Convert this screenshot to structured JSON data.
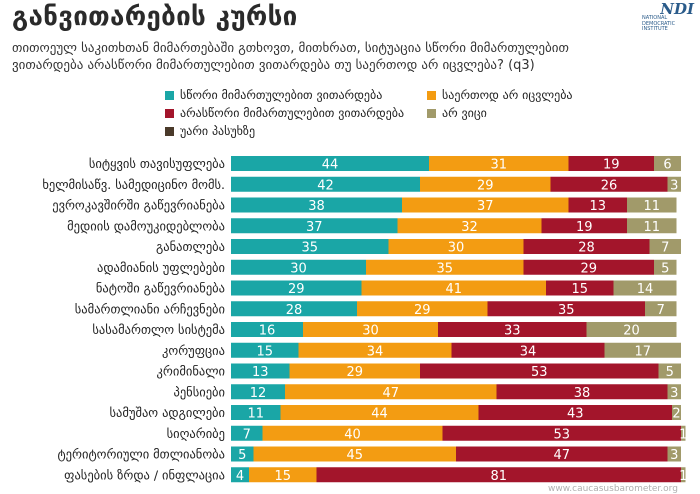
{
  "header": {
    "title": "განვითარების კურსი",
    "question": "თითოეულ საკითხთან მიმართებაში გთხოვთ, მითხრათ, სიტუაცია სწორი მიმართულებით ვითარდება არასწორი მიმართულებით ვითარდება თუ საერთოდ არ იცვლება? (q3)",
    "logo_text": "NDI",
    "logo_subtext": "NATIONAL DEMOCRATIC INSTITUTE"
  },
  "footer": {
    "source_url": "www.caucasusbarometer.org"
  },
  "colors": {
    "right": "#1aa6a6",
    "no_change": "#f39c12",
    "wrong": "#a3152b",
    "dont_know": "#a19a6a",
    "refuse": "#4a3a2a"
  },
  "chart_data": {
    "type": "bar",
    "orientation": "horizontal",
    "stacked": true,
    "xlim": [
      0,
      100
    ],
    "legend": [
      {
        "key": "right",
        "label": "სწორი მიმართულებით ვითარდება"
      },
      {
        "key": "no_change",
        "label": "საერთოდ არ იცვლება"
      },
      {
        "key": "wrong",
        "label": "არასწორი მიმართულებით ვითარდება"
      },
      {
        "key": "dont_know",
        "label": "არ ვიცი"
      },
      {
        "key": "refuse",
        "label": "უარი პასუხზე"
      }
    ],
    "categories": [
      "სიტყვის თავისუფლება",
      "ხელმისაწვ. სამედიცინო მომს.",
      "ევროკავშირში გაწევრიანება",
      "მედიის დამოუკიდებლობა",
      "განათლება",
      "ადამიანის უფლებები",
      "ნატოში გაწევრიანება",
      "სამართლიანი არჩევნები",
      "სასამართლო სისტემა",
      "კორუფცია",
      "კრიმინალი",
      "პენსიები",
      "სამუშაო ადგილები",
      "სიღარიბე",
      "ტერიტორიული მთლიანობა",
      "ფასების ზრდა / ინფლაცია"
    ],
    "series": [
      {
        "name": "სწორი მიმართულებით ვითარდება",
        "key": "right",
        "values": [
          44,
          42,
          38,
          37,
          35,
          30,
          29,
          28,
          16,
          15,
          13,
          12,
          11,
          7,
          5,
          4
        ]
      },
      {
        "name": "საერთოდ არ იცვლება",
        "key": "no_change",
        "values": [
          31,
          29,
          37,
          32,
          30,
          35,
          41,
          29,
          30,
          34,
          29,
          47,
          44,
          40,
          45,
          15
        ]
      },
      {
        "name": "არასწორი მიმართულებით ვითარდება",
        "key": "wrong",
        "values": [
          19,
          26,
          13,
          19,
          28,
          29,
          15,
          35,
          33,
          34,
          53,
          38,
          43,
          53,
          47,
          81
        ]
      },
      {
        "name": "არ ვიცი",
        "key": "dont_know",
        "values": [
          6,
          3,
          11,
          11,
          7,
          5,
          14,
          7,
          20,
          17,
          5,
          3,
          2,
          1,
          3,
          1
        ]
      },
      {
        "name": "უარი პასუხზე",
        "key": "refuse",
        "values": [
          0,
          0,
          0,
          0,
          0,
          0,
          0,
          0,
          0,
          0,
          0,
          0,
          0,
          0,
          0,
          0
        ]
      }
    ]
  }
}
